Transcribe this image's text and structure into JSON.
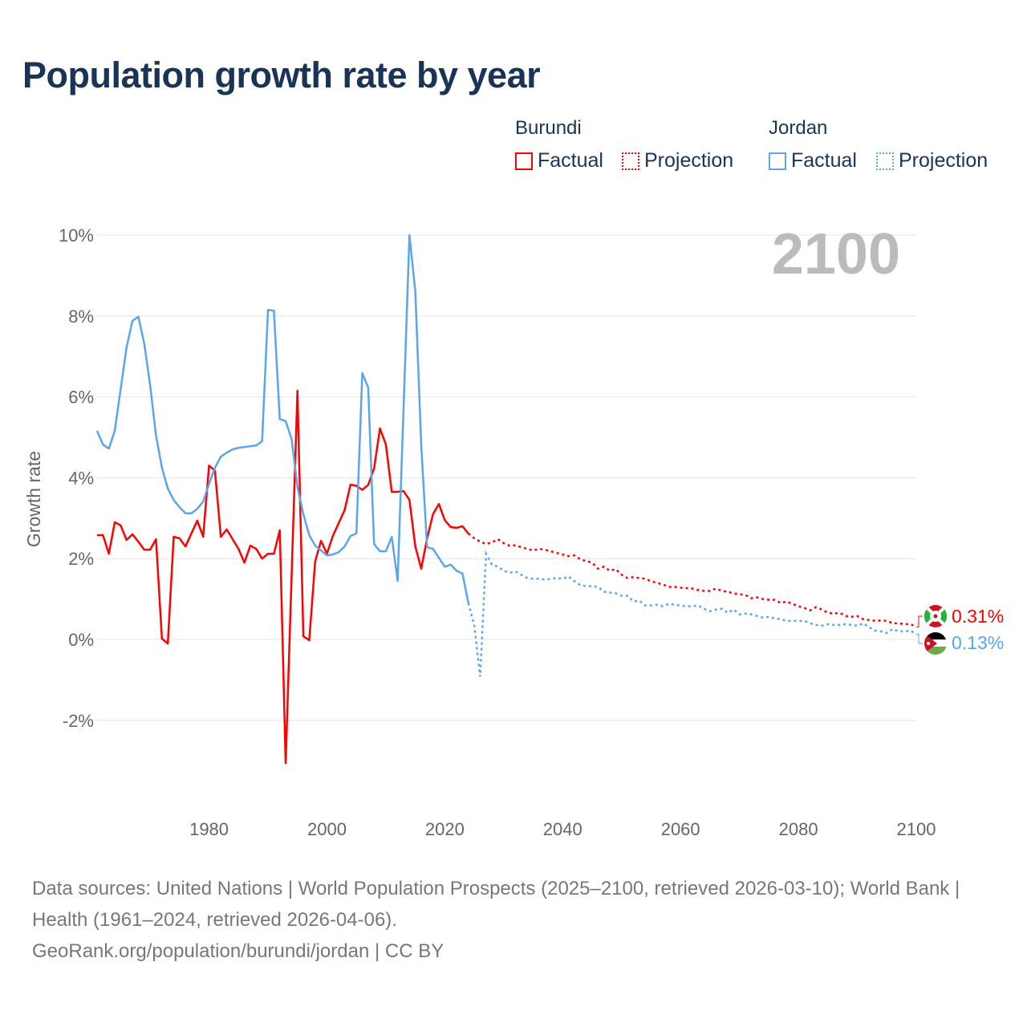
{
  "title": "Population growth rate by year",
  "legend": {
    "burundi": {
      "name": "Burundi",
      "factual": "Factual",
      "projection": "Projection"
    },
    "jordan": {
      "name": "Jordan",
      "factual": "Factual",
      "projection": "Projection"
    }
  },
  "colors": {
    "burundi": "#ff0000",
    "jordan": "#5aa5ec",
    "title": "#1a3457",
    "year": "#bbbbbb"
  },
  "chart_data": {
    "type": "line",
    "ylabel": "Growth rate",
    "xlabel": "",
    "xlim": [
      1961,
      2100
    ],
    "ylim": [
      -4,
      10
    ],
    "x_ticks": [
      "1980",
      "2000",
      "2020",
      "2040",
      "2060",
      "2080",
      "2100"
    ],
    "y_ticks": [
      "10%",
      "8%",
      "6%",
      "4%",
      "2%",
      "0%",
      "-2%"
    ],
    "grid": true,
    "year_label": "2100",
    "end_labels": {
      "burundi": "0.31%",
      "jordan": "0.13%"
    },
    "series": [
      {
        "name": "Burundi",
        "factual_start": 1961,
        "factual": [
          2.58,
          2.58,
          2.12,
          2.9,
          2.82,
          2.46,
          2.6,
          2.42,
          2.22,
          2.22,
          2.48,
          0.02,
          -0.1,
          2.54,
          2.5,
          2.3,
          2.62,
          2.94,
          2.54,
          4.3,
          4.17,
          2.54,
          2.72,
          2.48,
          2.24,
          1.9,
          2.32,
          2.24,
          2.0,
          2.12,
          2.12,
          2.7,
          -3.06,
          1.55,
          6.15,
          0.08,
          -0.02,
          1.93,
          2.44,
          2.12,
          2.56,
          2.88,
          3.2,
          3.83,
          3.8,
          3.7,
          3.82,
          4.23,
          5.22,
          4.82,
          3.65,
          3.65,
          3.67,
          3.45,
          2.3,
          1.75,
          2.5,
          3.1,
          3.35,
          2.95,
          2.78,
          2.76,
          2.8,
          2.62
        ],
        "projection_start": 2025,
        "projection": [
          2.5,
          2.42,
          2.36,
          2.4,
          2.48,
          2.38,
          2.32,
          2.33,
          2.28,
          2.24,
          2.2,
          2.24,
          2.22,
          2.18,
          2.14,
          2.1,
          2.06,
          2.08,
          1.98,
          1.94,
          1.9,
          1.75,
          1.8,
          1.7,
          1.74,
          1.6,
          1.52,
          1.54,
          1.52,
          1.5,
          1.44,
          1.4,
          1.36,
          1.3,
          1.3,
          1.28,
          1.27,
          1.26,
          1.22,
          1.2,
          1.2,
          1.26,
          1.2,
          1.18,
          1.14,
          1.12,
          1.1,
          1.02,
          1.04,
          1.0,
          0.98,
          0.98,
          0.9,
          0.94,
          0.88,
          0.82,
          0.78,
          0.72,
          0.8,
          0.74,
          0.66,
          0.64,
          0.66,
          0.58,
          0.56,
          0.58,
          0.5,
          0.48,
          0.46,
          0.47,
          0.46,
          0.4,
          0.4,
          0.38,
          0.38,
          0.31
        ]
      },
      {
        "name": "Jordan",
        "factual_start": 1961,
        "factual": [
          5.16,
          4.82,
          4.72,
          5.16,
          6.19,
          7.22,
          7.88,
          7.98,
          7.32,
          6.29,
          5.04,
          4.25,
          3.73,
          3.45,
          3.27,
          3.12,
          3.12,
          3.23,
          3.41,
          3.85,
          4.25,
          4.52,
          4.62,
          4.7,
          4.74,
          4.76,
          4.78,
          4.8,
          4.9,
          8.15,
          8.13,
          5.45,
          5.4,
          4.96,
          3.77,
          3.1,
          2.58,
          2.32,
          2.2,
          2.08,
          2.1,
          2.16,
          2.3,
          2.56,
          2.62,
          6.59,
          6.23,
          2.36,
          2.18,
          2.18,
          2.54,
          1.45,
          5.7,
          10.0,
          8.6,
          4.8,
          2.28,
          2.24,
          2.02,
          1.8,
          1.85,
          1.7,
          1.63,
          0.9
        ],
        "projection_start": 2025,
        "projection": [
          0.35,
          -0.92,
          2.12,
          1.85,
          1.8,
          1.7,
          1.65,
          1.68,
          1.6,
          1.52,
          1.5,
          1.5,
          1.48,
          1.5,
          1.52,
          1.5,
          1.56,
          1.44,
          1.34,
          1.32,
          1.32,
          1.3,
          1.18,
          1.16,
          1.14,
          1.08,
          1.08,
          0.94,
          0.96,
          0.84,
          0.84,
          0.86,
          0.82,
          0.88,
          0.86,
          0.84,
          0.82,
          0.82,
          0.84,
          0.76,
          0.7,
          0.74,
          0.76,
          0.66,
          0.74,
          0.62,
          0.64,
          0.62,
          0.58,
          0.54,
          0.56,
          0.52,
          0.5,
          0.46,
          0.46,
          0.46,
          0.46,
          0.4,
          0.36,
          0.34,
          0.38,
          0.36,
          0.36,
          0.38,
          0.36,
          0.34,
          0.4,
          0.3,
          0.22,
          0.2,
          0.16,
          0.26,
          0.2,
          0.2,
          0.22,
          0.13
        ]
      }
    ]
  },
  "footer": {
    "sources": "Data sources: United Nations | World Population Prospects (2025–2100, retrieved 2026-03-10); World Bank | Health (1961–2024, retrieved 2026-04-06).",
    "credit": "GeoRank.org/population/burundi/jordan | CC BY"
  }
}
